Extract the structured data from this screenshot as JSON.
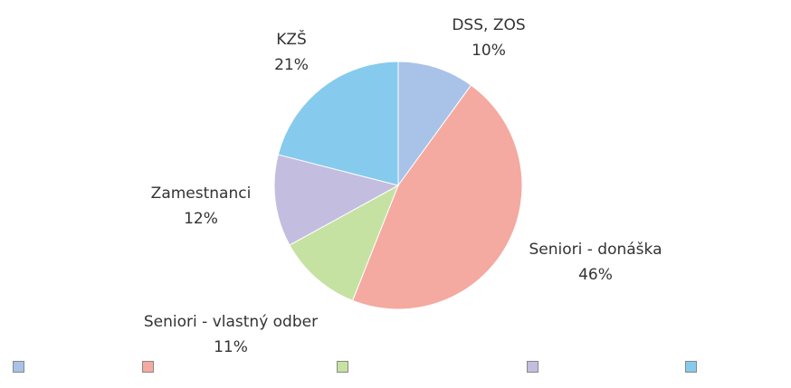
{
  "chart_data": {
    "type": "pie",
    "categories": [
      "DSS, ZOS",
      "Seniori - donáška",
      "Seniori - vlastný odber",
      "Zamestnanci",
      "KZŠ"
    ],
    "values": [
      10,
      46,
      11,
      12,
      21
    ],
    "value_labels": [
      "10%",
      "46%",
      "11%",
      "12%",
      "21%"
    ],
    "colors": [
      "#a9c2e8",
      "#f4aaa0",
      "#c6e2a2",
      "#c3bde0",
      "#86cbed"
    ],
    "legend": "bottom"
  }
}
